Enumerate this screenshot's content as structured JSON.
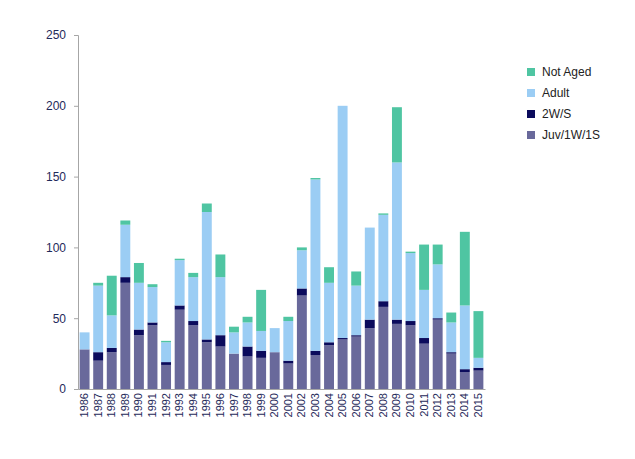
{
  "chart_data": {
    "type": "bar",
    "stacked": true,
    "grid": false,
    "legend": "right",
    "categories": [
      "1986",
      "1987",
      "1988",
      "1989",
      "1990",
      "1991",
      "1992",
      "1993",
      "1994",
      "1995",
      "1996",
      "1997",
      "1998",
      "1999",
      "2000",
      "2001",
      "2002",
      "2003",
      "2004",
      "2005",
      "2006",
      "2007",
      "2008",
      "2009",
      "2010",
      "2011",
      "2012",
      "2013",
      "2014",
      "2015"
    ],
    "ylim": [
      0,
      250
    ],
    "yticks": [
      0,
      50,
      100,
      150,
      200,
      250
    ],
    "series": [
      {
        "name": "Juv/1W/1S",
        "color": "#69699b",
        "values": [
          28,
          20,
          26,
          75,
          38,
          45,
          17,
          56,
          45,
          33,
          30,
          25,
          23,
          22,
          26,
          18,
          66,
          24,
          31,
          35,
          37,
          43,
          58,
          46,
          45,
          32,
          49,
          25,
          12,
          13
        ]
      },
      {
        "name": "2W/S",
        "color": "#0b0b5c",
        "values": [
          0,
          6,
          3,
          4,
          4,
          2,
          2,
          3,
          3,
          2,
          8,
          0,
          7,
          5,
          0,
          2,
          5,
          3,
          2,
          1,
          1,
          6,
          4,
          3,
          3,
          4,
          1,
          1,
          2,
          2
        ]
      },
      {
        "name": "Adult",
        "color": "#9bcdf4",
        "values": [
          12,
          47,
          23,
          37,
          33,
          25,
          14,
          32,
          31,
          90,
          41,
          15,
          17,
          14,
          17,
          28,
          27,
          121,
          42,
          164,
          35,
          65,
          61,
          111,
          48,
          34,
          38,
          21,
          45,
          7
        ]
      },
      {
        "name": "Not Aged",
        "color": "#4fc5a2",
        "values": [
          0,
          2,
          28,
          3,
          14,
          2,
          1,
          1,
          3,
          6,
          16,
          4,
          4,
          29,
          0,
          3,
          2,
          1,
          11,
          0,
          10,
          0,
          1,
          39,
          1,
          32,
          14,
          7,
          52,
          33
        ]
      }
    ]
  }
}
